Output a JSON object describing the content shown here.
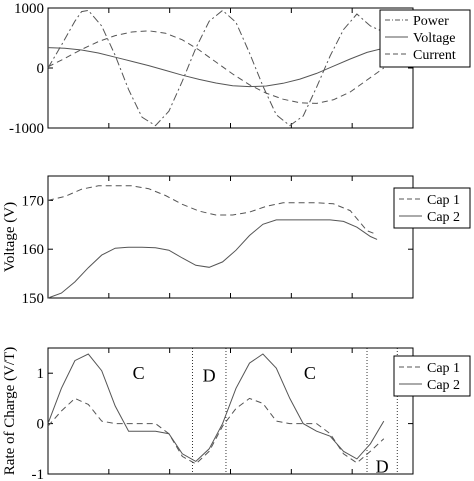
{
  "chart_data": [
    {
      "type": "line",
      "xlabel": "",
      "ylabel": "",
      "ylim": [
        -1000,
        1000
      ],
      "yticks": [
        1000,
        0,
        -1000
      ],
      "ytick_labels": [
        "1000",
        "0",
        "-1000"
      ],
      "legend": "top-right",
      "series": [
        {
          "name": "Power",
          "style": "dashdot",
          "x": [
            0,
            0.04,
            0.08,
            0.1,
            0.12,
            0.16,
            0.2,
            0.24,
            0.28,
            0.32,
            0.36,
            0.4,
            0.44,
            0.48,
            0.52,
            0.56,
            0.6,
            0.64,
            0.68,
            0.72,
            0.76,
            0.8,
            0.84,
            0.88,
            0.92,
            0.96,
            1
          ],
          "y": [
            0,
            380,
            780,
            940,
            960,
            700,
            210,
            -360,
            -820,
            -960,
            -720,
            -220,
            330,
            780,
            960,
            760,
            250,
            -300,
            -780,
            -960,
            -800,
            -320,
            200,
            640,
            900,
            700,
            600
          ]
        },
        {
          "name": "Voltage",
          "style": "solid",
          "x": [
            0,
            0.05,
            0.1,
            0.15,
            0.2,
            0.25,
            0.3,
            0.35,
            0.4,
            0.45,
            0.5,
            0.55,
            0.6,
            0.65,
            0.7,
            0.75,
            0.8,
            0.85,
            0.9,
            0.95,
            1
          ],
          "y": [
            340,
            330,
            300,
            250,
            180,
            110,
            40,
            -40,
            -120,
            -190,
            -250,
            -295,
            -310,
            -300,
            -255,
            -185,
            -90,
            30,
            150,
            260,
            330
          ]
        },
        {
          "name": "Current",
          "style": "dashed",
          "x": [
            0,
            0.05,
            0.1,
            0.15,
            0.2,
            0.25,
            0.3,
            0.35,
            0.4,
            0.45,
            0.5,
            0.55,
            0.6,
            0.65,
            0.7,
            0.75,
            0.8,
            0.85,
            0.9,
            0.95,
            1
          ],
          "y": [
            20,
            160,
            310,
            440,
            540,
            600,
            620,
            580,
            470,
            300,
            100,
            -100,
            -280,
            -420,
            -520,
            -580,
            -590,
            -530,
            -400,
            -200,
            0
          ]
        }
      ]
    },
    {
      "type": "line",
      "xlabel": "",
      "ylabel": "Voltage (V)",
      "ylim": [
        150,
        175
      ],
      "yticks": [
        170,
        160,
        150
      ],
      "ytick_labels": [
        "170",
        "160",
        "150"
      ],
      "legend": "top-right",
      "series": [
        {
          "name": "Cap 1",
          "style": "dashed",
          "x": [
            0,
            0.05,
            0.1,
            0.15,
            0.2,
            0.25,
            0.3,
            0.35,
            0.4,
            0.45,
            0.5,
            0.55,
            0.6,
            0.65,
            0.7,
            0.75,
            0.8,
            0.85,
            0.9,
            0.95,
            0.98
          ],
          "y": [
            170,
            170.8,
            172.3,
            173,
            173,
            173,
            172.4,
            171,
            169.2,
            167.8,
            167,
            167,
            167.6,
            168.8,
            169.5,
            169.5,
            169.5,
            169.3,
            167.9,
            163.8,
            163
          ]
        },
        {
          "name": "Cap 2",
          "style": "solid",
          "x": [
            0,
            0.04,
            0.08,
            0.12,
            0.16,
            0.2,
            0.24,
            0.28,
            0.32,
            0.36,
            0.4,
            0.44,
            0.48,
            0.52,
            0.56,
            0.6,
            0.64,
            0.68,
            0.72,
            0.76,
            0.8,
            0.84,
            0.88,
            0.92,
            0.96,
            0.98
          ],
          "y": [
            150,
            151,
            153.3,
            156.2,
            158.8,
            160.2,
            160.4,
            160.4,
            160.3,
            159.8,
            158.2,
            156.7,
            156.3,
            157.4,
            159.8,
            162.8,
            165.1,
            166,
            166,
            166,
            166,
            166,
            165.7,
            164.5,
            162.6,
            162
          ]
        }
      ]
    },
    {
      "type": "line",
      "xlabel": "",
      "ylabel": "Rate of Charge (V/T)",
      "ylim": [
        -1,
        1.5
      ],
      "yticks": [
        1,
        0,
        -1
      ],
      "ytick_labels": [
        "1",
        "0",
        "-1"
      ],
      "legend": "top-right",
      "annotations": [
        "C",
        "D",
        "C",
        "D"
      ],
      "dividers_x": [
        0.43,
        0.53,
        0.95,
        1.04
      ],
      "series": [
        {
          "name": "Cap 1",
          "style": "dashed",
          "x": [
            0,
            0.04,
            0.08,
            0.12,
            0.16,
            0.2,
            0.24,
            0.28,
            0.32,
            0.36,
            0.4,
            0.44,
            0.48,
            0.52,
            0.56,
            0.6,
            0.64,
            0.68,
            0.72,
            0.76,
            0.8,
            0.84,
            0.88,
            0.92,
            0.96,
            1
          ],
          "y": [
            -0.05,
            0.25,
            0.5,
            0.38,
            0.05,
            0,
            0,
            0,
            0,
            -0.2,
            -0.65,
            -0.8,
            -0.55,
            -0.05,
            0.3,
            0.5,
            0.4,
            0.05,
            0,
            0,
            0,
            -0.2,
            -0.6,
            -0.78,
            -0.55,
            -0.3
          ]
        },
        {
          "name": "Cap 2",
          "style": "solid",
          "x": [
            0,
            0.04,
            0.08,
            0.12,
            0.16,
            0.2,
            0.24,
            0.28,
            0.32,
            0.36,
            0.4,
            0.44,
            0.48,
            0.52,
            0.56,
            0.6,
            0.64,
            0.68,
            0.72,
            0.76,
            0.8,
            0.84,
            0.88,
            0.92,
            0.96,
            1
          ],
          "y": [
            0,
            0.7,
            1.25,
            1.38,
            1.05,
            0.35,
            -0.15,
            -0.15,
            -0.15,
            -0.2,
            -0.6,
            -0.75,
            -0.5,
            0,
            0.7,
            1.2,
            1.38,
            1.1,
            0.5,
            0,
            -0.15,
            -0.25,
            -0.55,
            -0.7,
            -0.4,
            0.05
          ]
        }
      ]
    }
  ]
}
